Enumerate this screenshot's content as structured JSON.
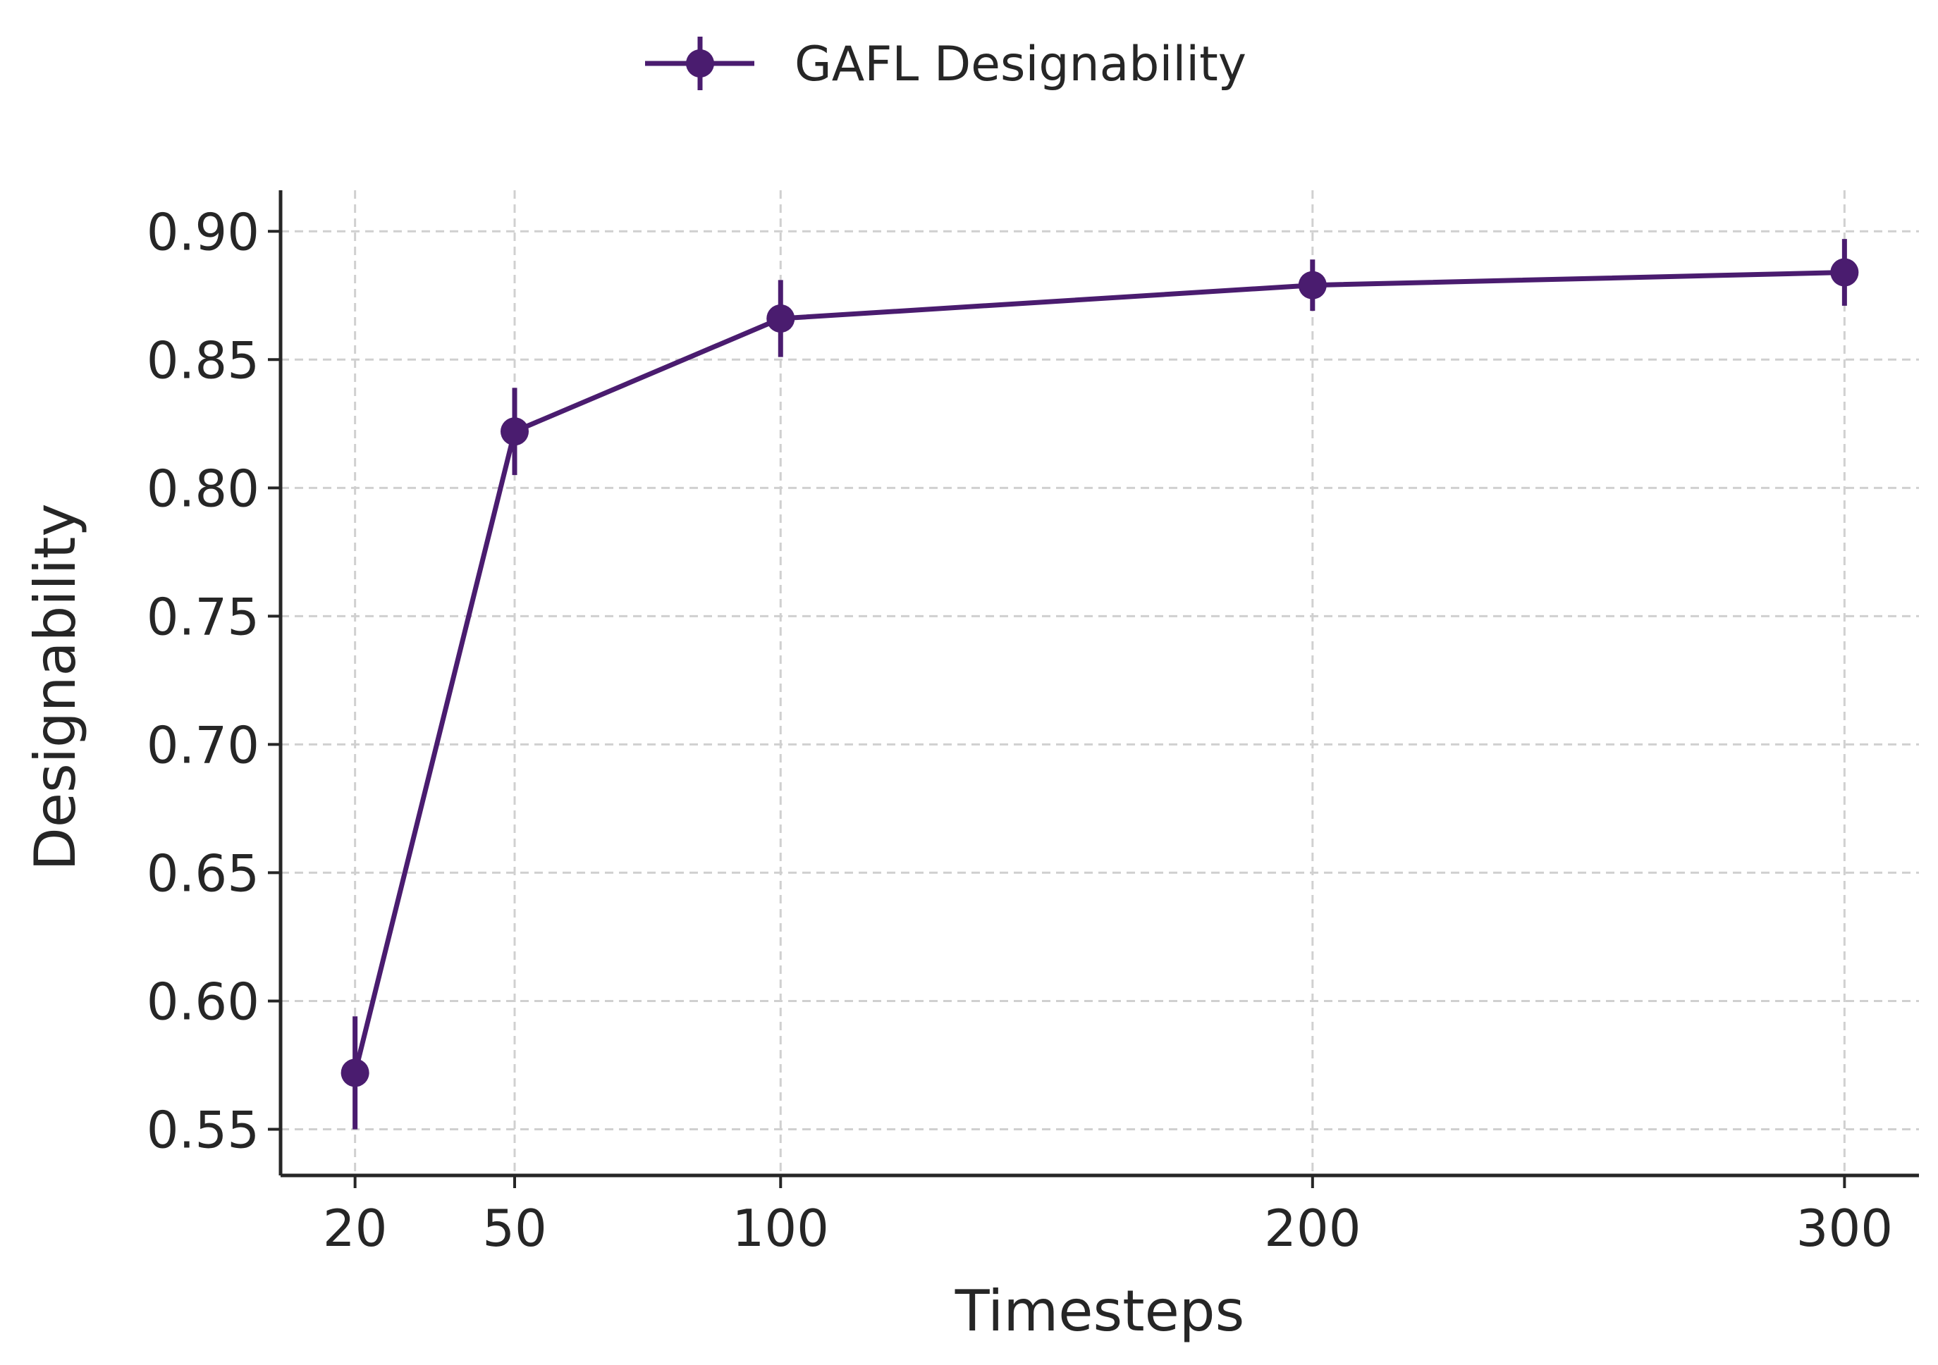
{
  "chart_data": {
    "type": "line",
    "title": "",
    "xlabel": "Timesteps",
    "ylabel": "Designability",
    "x": [
      20,
      50,
      100,
      200,
      300
    ],
    "xticks": [
      20,
      50,
      100,
      200,
      300
    ],
    "xtick_labels": [
      "20",
      "50",
      "100",
      "200",
      "300"
    ],
    "yticks": [
      0.55,
      0.6,
      0.65,
      0.7,
      0.75,
      0.8,
      0.85,
      0.9
    ],
    "ytick_labels": [
      "0.55",
      "0.60",
      "0.65",
      "0.70",
      "0.75",
      "0.80",
      "0.85",
      "0.90"
    ],
    "xlim": [
      6,
      314
    ],
    "ylim": [
      0.532,
      0.916
    ],
    "grid": true,
    "legend_position": "top-center",
    "series": [
      {
        "name": "GAFL Designability",
        "color": "#4a1c6f",
        "values": [
          0.572,
          0.822,
          0.866,
          0.879,
          0.884
        ],
        "errors": [
          0.022,
          0.017,
          0.015,
          0.01,
          0.013
        ]
      }
    ]
  }
}
